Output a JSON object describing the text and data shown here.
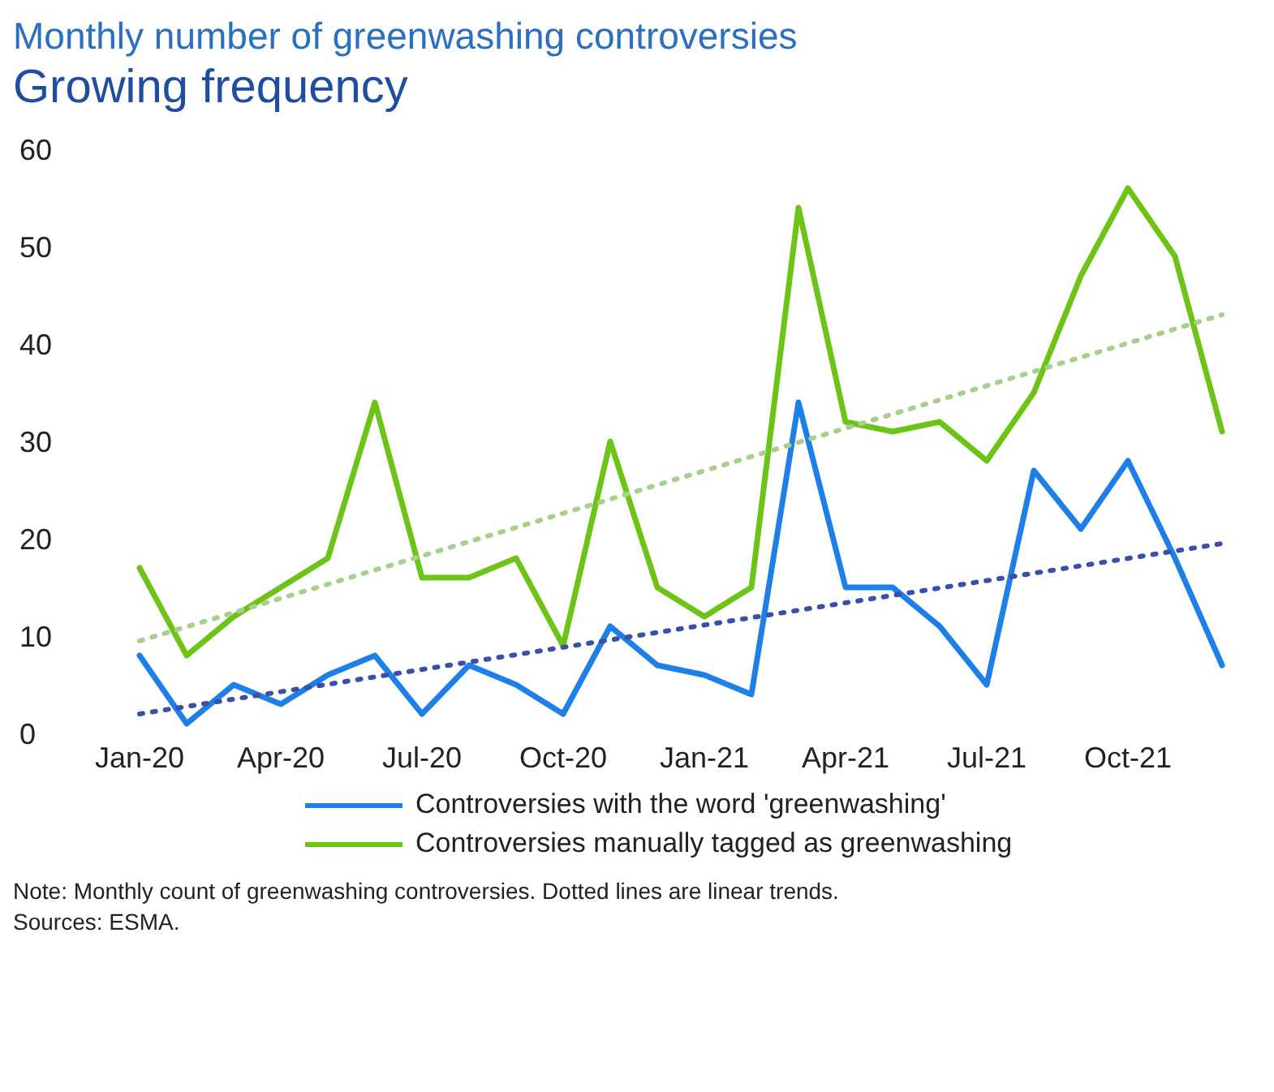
{
  "chart_data": {
    "type": "line",
    "title": "Monthly number of greenwashing controversies",
    "subtitle": "Growing frequency",
    "categories": [
      "Jan-20",
      null,
      null,
      "Apr-20",
      null,
      null,
      "Jul-20",
      null,
      null,
      "Oct-20",
      null,
      null,
      "Jan-21",
      null,
      null,
      "Apr-21",
      null,
      null,
      "Jul-21",
      null,
      null,
      "Oct-21",
      null,
      null
    ],
    "series": [
      {
        "name": "Controversies with the word 'greenwashing'",
        "color": "#1f7fe8",
        "values": [
          8,
          1,
          5,
          3,
          6,
          8,
          2,
          7,
          5,
          2,
          11,
          7,
          6,
          4,
          34,
          15,
          15,
          11,
          5,
          27,
          21,
          28,
          18,
          7
        ]
      },
      {
        "name": "Controversies manually tagged as greenwashing",
        "color": "#6cc417",
        "values": [
          17,
          8,
          12,
          15,
          18,
          34,
          16,
          16,
          18,
          9,
          30,
          15,
          12,
          15,
          54,
          32,
          31,
          32,
          28,
          35,
          47,
          56,
          49,
          31
        ]
      },
      {
        "color": "#3a4fa8",
        "line_style": "dotted",
        "values": [
          2,
          null,
          null,
          null,
          null,
          null,
          null,
          null,
          null,
          null,
          null,
          null,
          null,
          null,
          null,
          null,
          null,
          null,
          null,
          null,
          null,
          null,
          null,
          19.5
        ]
      },
      {
        "color": "#a8d08d",
        "line_style": "dotted",
        "values": [
          9.5,
          null,
          null,
          null,
          null,
          null,
          null,
          null,
          null,
          null,
          null,
          null,
          null,
          null,
          null,
          null,
          null,
          null,
          null,
          null,
          null,
          null,
          null,
          43
        ]
      }
    ],
    "ylim": [
      0,
      60
    ],
    "yticks": [
      0,
      10,
      20,
      30,
      40,
      50,
      60
    ],
    "grid": false,
    "legend": "bottom",
    "marker": "none",
    "line_style": "solid",
    "annotations": [
      "Note: Monthly count of greenwashing controversies. Dotted lines are linear trends.",
      "Sources: ESMA."
    ]
  }
}
